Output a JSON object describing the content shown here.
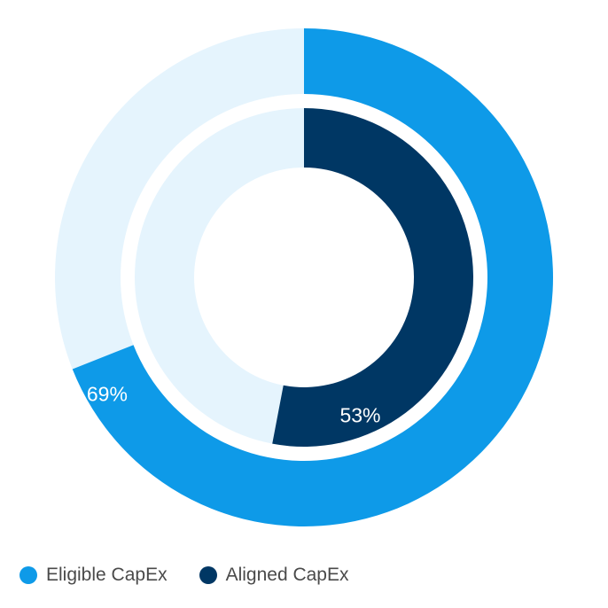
{
  "chart_data": {
    "type": "pie",
    "series": [
      {
        "name": "Eligible CapEx",
        "value": 69,
        "label": "69%",
        "color": "#0e9ae8",
        "track_color": "#e5f4fd"
      },
      {
        "name": "Aligned CapEx",
        "value": 53,
        "label": "53%",
        "color": "#003764",
        "track_color": "#e5f4fd"
      }
    ],
    "legend_position": "bottom-left"
  },
  "legend": {
    "items": [
      {
        "label": "Eligible CapEx",
        "color": "#0e9ae8"
      },
      {
        "label": "Aligned CapEx",
        "color": "#003764"
      }
    ]
  }
}
